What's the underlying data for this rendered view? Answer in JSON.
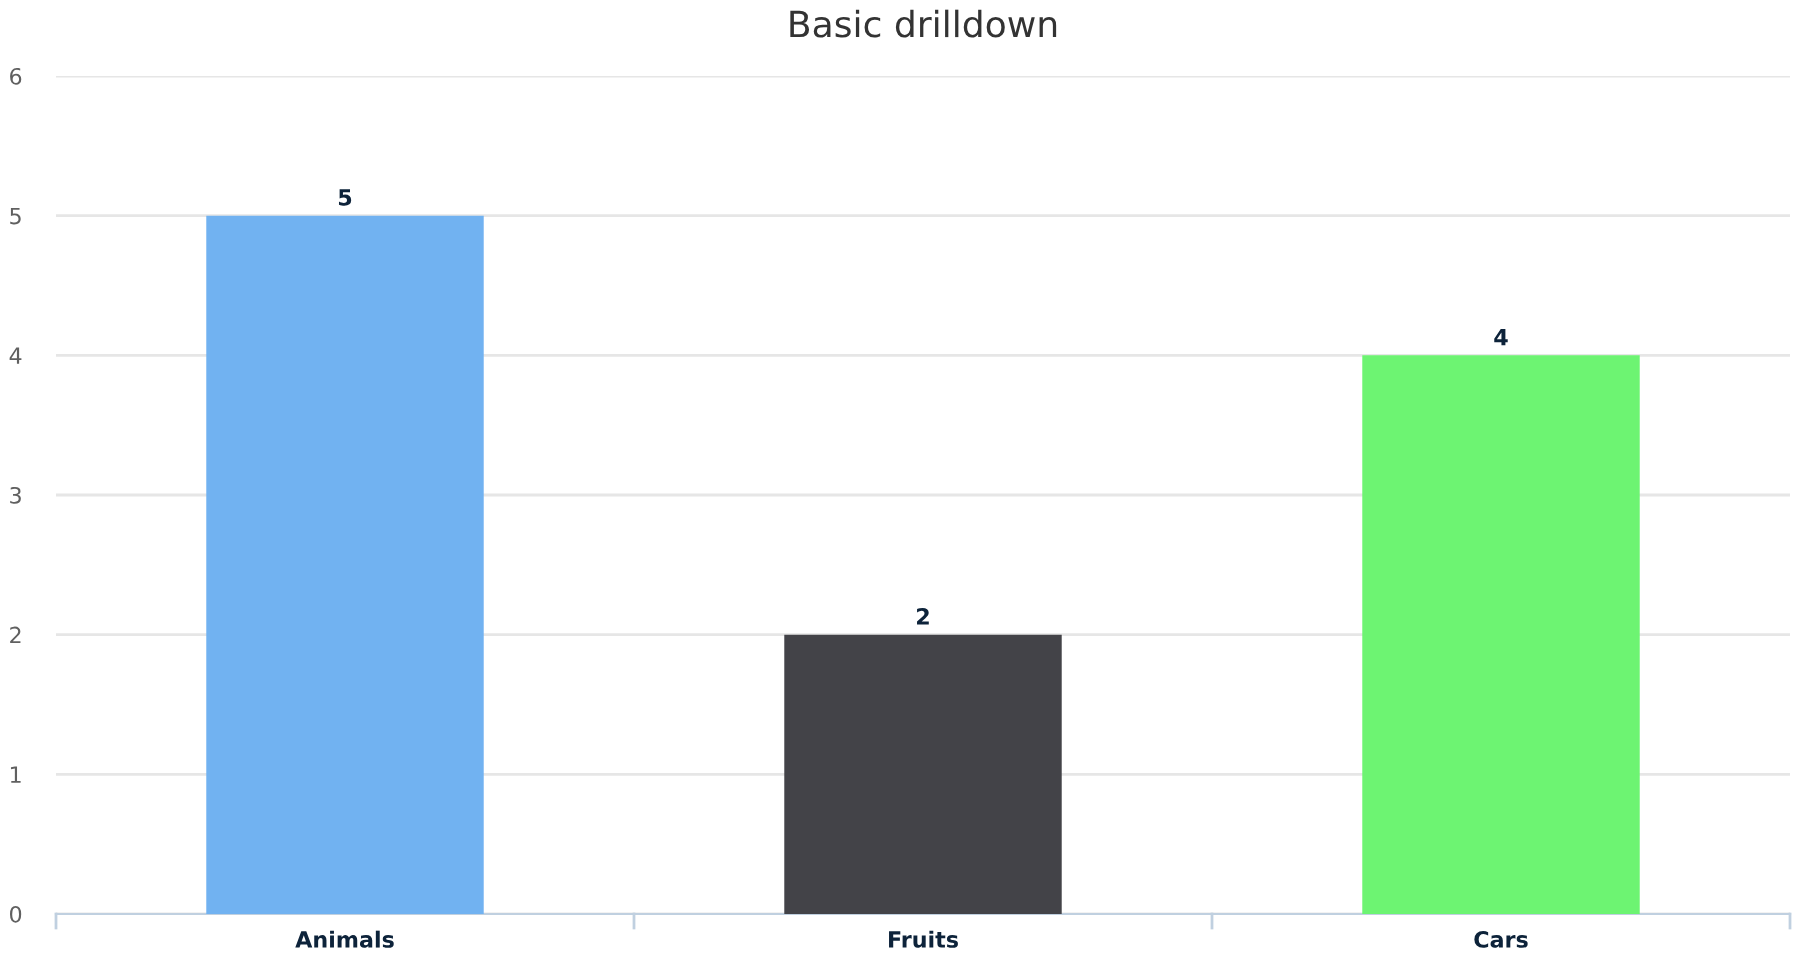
{
  "chart_data": {
    "type": "bar",
    "title": "Basic drilldown",
    "categories": [
      "Animals",
      "Fruits",
      "Cars"
    ],
    "values": [
      5,
      2,
      4
    ],
    "colors": [
      "#71b2f1",
      "#434348",
      "#6df472"
    ],
    "ylim": [
      0,
      6
    ],
    "yticks": [
      0,
      1,
      2,
      3,
      4,
      5,
      6
    ],
    "grid": "y",
    "data_labels": true
  }
}
